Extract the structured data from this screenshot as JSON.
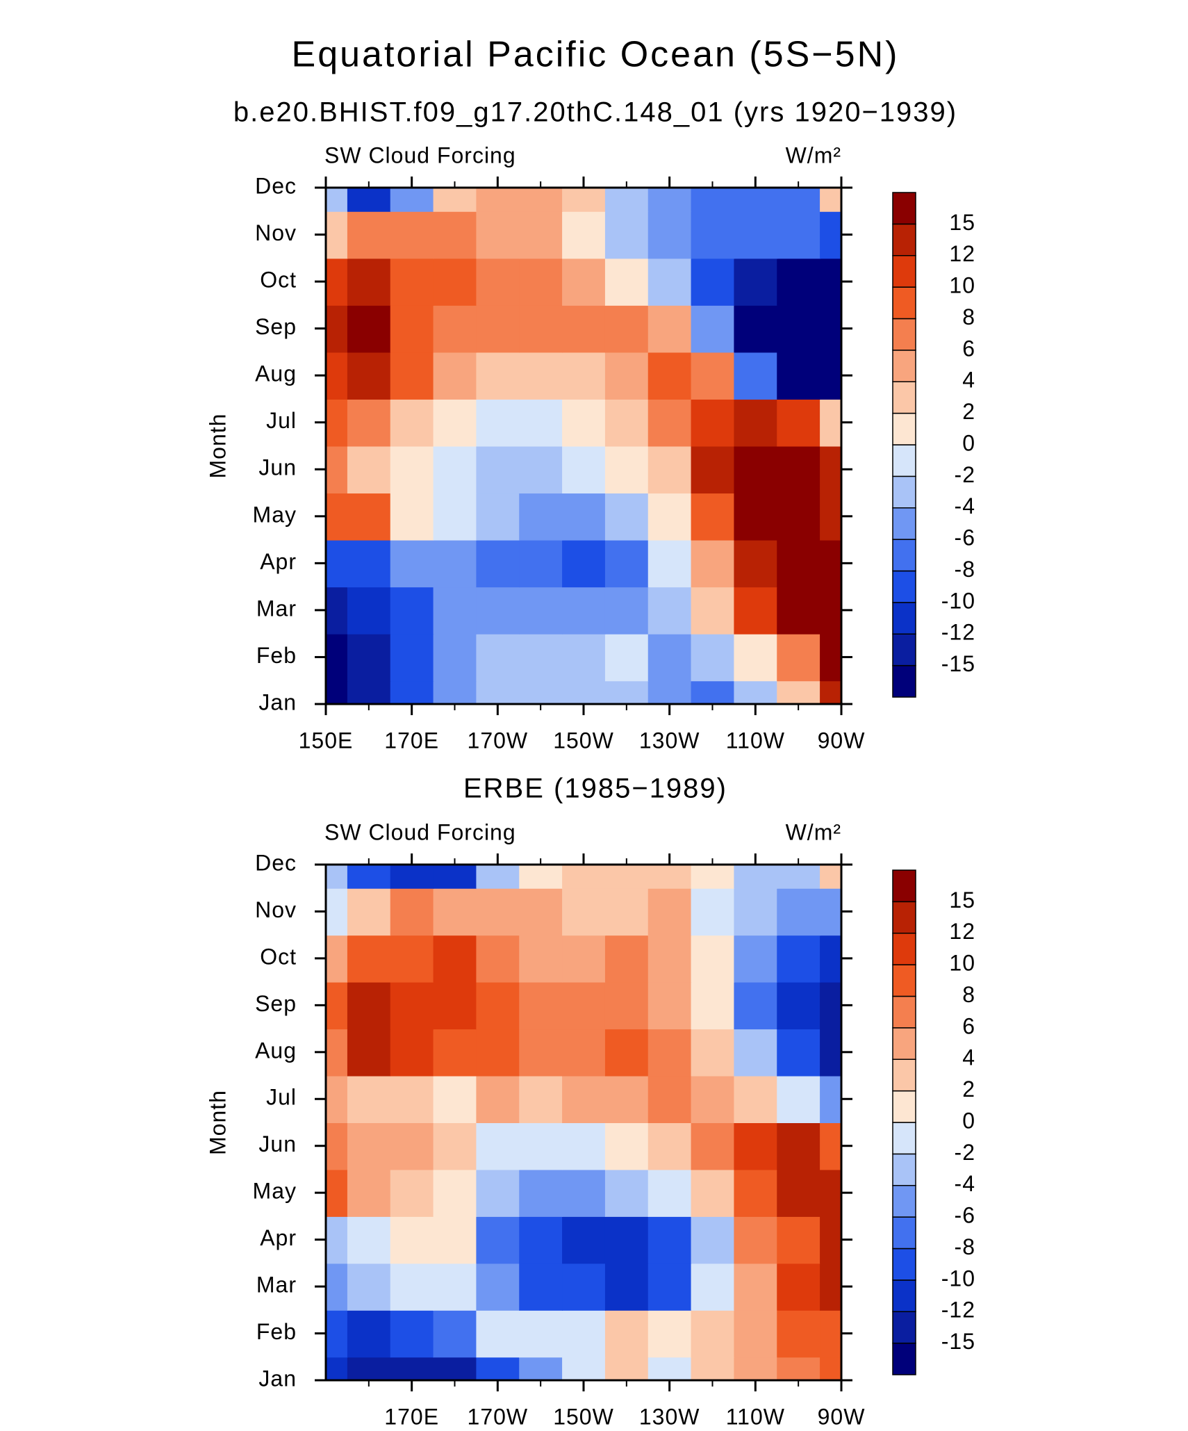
{
  "title": "Equatorial Pacific Ocean (5S−5N)",
  "chart_data": [
    {
      "type": "contour",
      "title": "b.e20.BHIST.f09_g17.20thC.148_01 (yrs 1920−1939)",
      "left_label": "SW Cloud Forcing",
      "right_label": "W/m²",
      "y_label": "Month",
      "categories": [
        "Jan",
        "Feb",
        "Mar",
        "Apr",
        "May",
        "Jun",
        "Jul",
        "Aug",
        "Sep",
        "Oct",
        "Nov",
        "Dec"
      ],
      "x": [
        150,
        160,
        170,
        180,
        190,
        200,
        210,
        220,
        230,
        240,
        250,
        260,
        270
      ],
      "xlim": [
        150,
        270
      ],
      "xticks": [
        {
          "value": 150,
          "label": "150E"
        },
        {
          "value": 170,
          "label": "170E"
        },
        {
          "value": 190,
          "label": "170W"
        },
        {
          "value": 210,
          "label": "150W"
        },
        {
          "value": 230,
          "label": "130W"
        },
        {
          "value": 250,
          "label": "110W"
        },
        {
          "value": 270,
          "label": "90W"
        }
      ],
      "xminorticks": [
        160,
        180,
        200,
        220,
        240,
        260
      ],
      "levels": [
        -15,
        -12,
        -10,
        -8,
        -6,
        -4,
        -2,
        0,
        2,
        4,
        6,
        8,
        10,
        12,
        15
      ],
      "colors": [
        "#00007a",
        "#0a1ea0",
        "#0b32c8",
        "#1d4fe6",
        "#4271ef",
        "#7097f3",
        "#a9c3f7",
        "#d6e5fa",
        "#fde6d2",
        "#fbc7a8",
        "#f8a57e",
        "#f47f4f",
        "#ef5b23",
        "#de3a0c",
        "#b82204",
        "#8a0000"
      ],
      "values": [
        [
          -16,
          -14,
          -10,
          -6,
          -3,
          -3,
          -3,
          -4,
          -6,
          -7,
          -3,
          2,
          14
        ],
        [
          -16,
          -13,
          -10,
          -6,
          -4,
          -3,
          -3,
          -2,
          -5,
          -4,
          0,
          6,
          16
        ],
        [
          -14,
          -11,
          -9,
          -6,
          -5,
          -6,
          -6,
          -5,
          -3,
          2,
          10,
          16,
          16
        ],
        [
          -9,
          -9,
          -6,
          -5,
          -7,
          -8,
          -9,
          -7,
          -2,
          5,
          14,
          16,
          16
        ],
        [
          8,
          9,
          1,
          -2,
          -4,
          -5,
          -5,
          -3,
          1,
          8,
          16,
          16,
          14
        ],
        [
          6,
          3,
          0,
          -2,
          -3,
          -3,
          -2,
          0,
          3,
          12,
          16,
          16,
          12
        ],
        [
          9,
          6,
          3,
          0,
          -1,
          -1,
          0,
          2,
          6,
          10,
          13,
          10,
          2
        ],
        [
          11,
          13,
          8,
          5,
          3,
          2,
          3,
          5,
          8,
          6,
          -8,
          -16,
          -16
        ],
        [
          12,
          17,
          9,
          7,
          6,
          6,
          6,
          7,
          4,
          -6,
          -16,
          -16,
          -16
        ],
        [
          10,
          12,
          9,
          8,
          7,
          6,
          4,
          1,
          -4,
          -10,
          -14,
          -16,
          -16
        ],
        [
          2,
          6,
          6,
          6,
          5,
          4,
          1,
          -3,
          -6,
          -7,
          -8,
          -8,
          -10
        ],
        [
          -3,
          -12,
          -6,
          2,
          5,
          4,
          2,
          -3,
          -5,
          -7,
          -7,
          -7,
          2
        ]
      ]
    },
    {
      "type": "contour",
      "title": "ERBE (1985−1989)",
      "left_label": "SW Cloud Forcing",
      "right_label": "W/m²",
      "y_label": "Month",
      "categories": [
        "Jan",
        "Feb",
        "Mar",
        "Apr",
        "May",
        "Jun",
        "Jul",
        "Aug",
        "Sep",
        "Oct",
        "Nov",
        "Dec"
      ],
      "x": [
        150,
        160,
        170,
        180,
        190,
        200,
        210,
        220,
        230,
        240,
        250,
        260,
        270
      ],
      "xlim": [
        150,
        270
      ],
      "xticks": [
        {
          "value": 170,
          "label": "170E"
        },
        {
          "value": 190,
          "label": "170W"
        },
        {
          "value": 210,
          "label": "150W"
        },
        {
          "value": 230,
          "label": "130W"
        },
        {
          "value": 250,
          "label": "110W"
        },
        {
          "value": 270,
          "label": "90W"
        }
      ],
      "xminorticks": [
        160,
        180,
        200,
        220,
        240,
        260
      ],
      "levels": [
        -15,
        -12,
        -10,
        -8,
        -6,
        -4,
        -2,
        0,
        2,
        4,
        6,
        8,
        10,
        12,
        15
      ],
      "colors": [
        "#00007a",
        "#0a1ea0",
        "#0b32c8",
        "#1d4fe6",
        "#4271ef",
        "#7097f3",
        "#a9c3f7",
        "#d6e5fa",
        "#fde6d2",
        "#fbc7a8",
        "#f8a57e",
        "#f47f4f",
        "#ef5b23",
        "#de3a0c",
        "#b82204",
        "#8a0000"
      ],
      "values": [
        [
          -12,
          -14,
          -13,
          -14,
          -10,
          -6,
          -1,
          2,
          -1,
          2,
          5,
          6,
          8
        ],
        [
          -10,
          -12,
          -10,
          -8,
          -2,
          -1,
          -1,
          3,
          1,
          3,
          4,
          8,
          9
        ],
        [
          -6,
          -4,
          -2,
          -2,
          -5,
          -9,
          -10,
          -11,
          -9,
          -2,
          5,
          10,
          14
        ],
        [
          -4,
          -1,
          1,
          0,
          -7,
          -10,
          -12,
          -12,
          -9,
          -4,
          6,
          8,
          12
        ],
        [
          9,
          4,
          3,
          0,
          -4,
          -5,
          -6,
          -4,
          -2,
          3,
          8,
          12,
          13
        ],
        [
          6,
          4,
          4,
          2,
          -2,
          -2,
          -1,
          1,
          3,
          7,
          10,
          12,
          8
        ],
        [
          4,
          3,
          2,
          1,
          4,
          3,
          4,
          5,
          6,
          5,
          2,
          -2,
          -6
        ],
        [
          6,
          13,
          10,
          9,
          8,
          6,
          6,
          8,
          6,
          3,
          -3,
          -10,
          -14
        ],
        [
          9,
          12,
          10,
          11,
          8,
          7,
          6,
          6,
          4,
          1,
          -8,
          -12,
          -15
        ],
        [
          4,
          8,
          9,
          10,
          6,
          5,
          5,
          6,
          4,
          0,
          -5,
          -10,
          -12
        ],
        [
          -1,
          3,
          6,
          5,
          4,
          4,
          3,
          3,
          4,
          -1,
          -4,
          -6,
          -6
        ],
        [
          -4,
          -10,
          -12,
          -12,
          -4,
          1,
          2,
          2,
          2,
          0,
          -3,
          -3,
          2
        ]
      ]
    }
  ]
}
